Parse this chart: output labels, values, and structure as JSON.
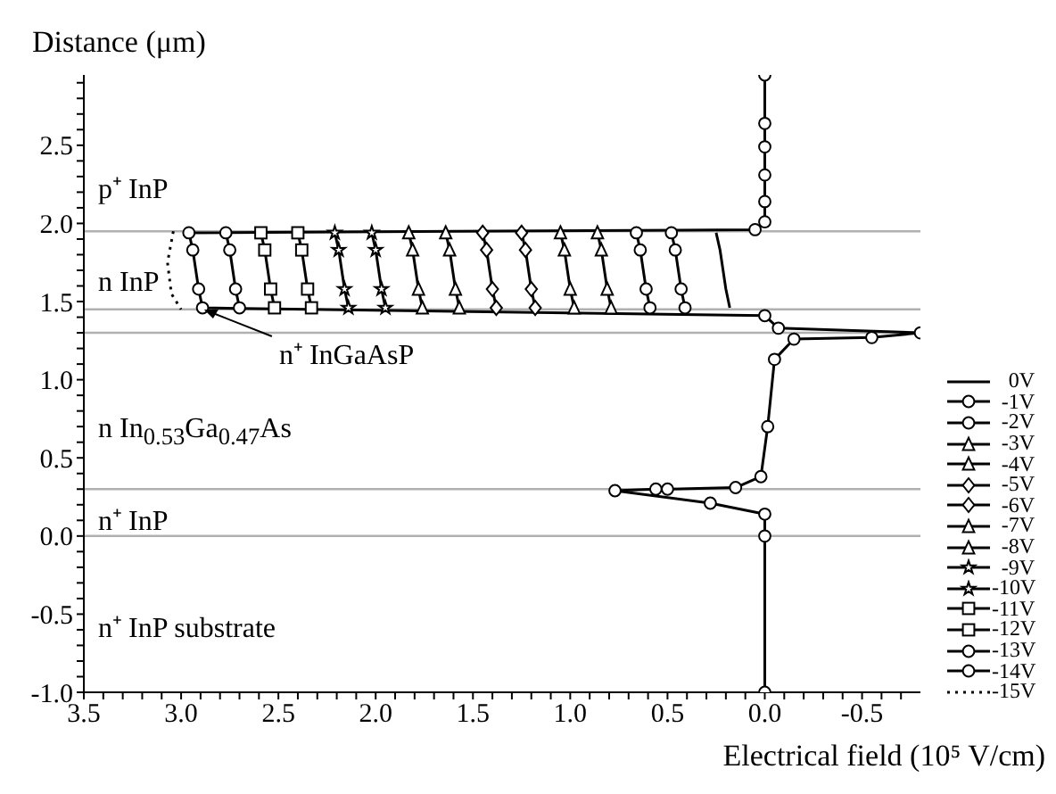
{
  "chart_data": {
    "type": "line",
    "xlabel": "Electrical field (10⁵ V/cm)",
    "ylabel": "Distance (μm)",
    "xlim": [
      3.5,
      -0.8
    ],
    "ylim": [
      -1.0,
      2.95
    ],
    "xticks": [
      3.5,
      {
        "value": 3.4,
        "label": null
      },
      {
        "value": 3.3,
        "label": null
      },
      {
        "value": 3.2,
        "label": null
      },
      {
        "value": 3.1,
        "label": null
      },
      {
        "value": 3,
        "label": "3.0"
      },
      {
        "value": 2.9,
        "label": null
      },
      {
        "value": 2.8,
        "label": null
      },
      {
        "value": 2.7,
        "label": null
      },
      {
        "value": 2.6,
        "label": null
      },
      2.5,
      {
        "value": 2.4,
        "label": null
      },
      {
        "value": 2.3,
        "label": null
      },
      {
        "value": 2.2,
        "label": null
      },
      {
        "value": 2.1,
        "label": null
      },
      {
        "value": 2,
        "label": "2.0"
      },
      {
        "value": 1.9,
        "label": null
      },
      {
        "value": 1.8,
        "label": null
      },
      {
        "value": 1.7,
        "label": null
      },
      {
        "value": 1.6,
        "label": null
      },
      1.5,
      {
        "value": 1.4,
        "label": null
      },
      {
        "value": 1.3,
        "label": null
      },
      {
        "value": 1.2,
        "label": null
      },
      {
        "value": 1.1,
        "label": null
      },
      {
        "value": 1,
        "label": "1.0"
      },
      {
        "value": 0.9,
        "label": null
      },
      {
        "value": 0.8,
        "label": null
      },
      {
        "value": 0.7,
        "label": null
      },
      {
        "value": 0.6,
        "label": null
      },
      0.5,
      {
        "value": 0.4,
        "label": null
      },
      {
        "value": 0.3,
        "label": null
      },
      {
        "value": 0.2,
        "label": null
      },
      {
        "value": 0.1,
        "label": null
      },
      {
        "value": 0,
        "label": "0.0"
      },
      {
        "value": -0.1,
        "label": null
      },
      {
        "value": -0.2,
        "label": null
      },
      {
        "value": -0.3,
        "label": null
      },
      {
        "value": -0.4,
        "label": null
      },
      -0.5,
      {
        "value": -0.6,
        "label": null
      },
      {
        "value": -0.7,
        "label": null
      }
    ],
    "yticks": [
      {
        "value": -1,
        "label": "-1.0"
      },
      {
        "value": -0.9,
        "label": null
      },
      {
        "value": -0.8,
        "label": null
      },
      {
        "value": -0.7,
        "label": null
      },
      {
        "value": -0.6,
        "label": null
      },
      -0.5,
      {
        "value": -0.4,
        "label": null
      },
      {
        "value": -0.3,
        "label": null
      },
      {
        "value": -0.2,
        "label": null
      },
      {
        "value": -0.1,
        "label": null
      },
      {
        "value": 0,
        "label": "0.0"
      },
      {
        "value": 0.1,
        "label": null
      },
      {
        "value": 0.2,
        "label": null
      },
      {
        "value": 0.3,
        "label": null
      },
      {
        "value": 0.4,
        "label": null
      },
      0.5,
      {
        "value": 0.6,
        "label": null
      },
      {
        "value": 0.7,
        "label": null
      },
      {
        "value": 0.8,
        "label": null
      },
      {
        "value": 0.9,
        "label": null
      },
      {
        "value": 1,
        "label": "1.0"
      },
      {
        "value": 1.1,
        "label": null
      },
      {
        "value": 1.2,
        "label": null
      },
      {
        "value": 1.3,
        "label": null
      },
      {
        "value": 1.4,
        "label": null
      },
      1.5,
      {
        "value": 1.6,
        "label": null
      },
      {
        "value": 1.7,
        "label": null
      },
      {
        "value": 1.8,
        "label": null
      },
      {
        "value": 1.9,
        "label": null
      },
      {
        "value": 2,
        "label": "2.0"
      },
      {
        "value": 2.1,
        "label": null
      },
      {
        "value": 2.2,
        "label": null
      },
      {
        "value": 2.3,
        "label": null
      },
      {
        "value": 2.4,
        "label": null
      },
      2.5,
      {
        "value": 2.6,
        "label": null
      },
      {
        "value": 2.7,
        "label": null
      },
      {
        "value": 2.8,
        "label": null
      },
      {
        "value": 2.9,
        "label": null
      }
    ],
    "grid": false,
    "legend": "right",
    "ref_lines": [
      {
        "axis": "y",
        "value": 1.95,
        "color": "#b0b0b0"
      },
      {
        "axis": "y",
        "value": 1.45,
        "color": "#b0b0b0"
      },
      {
        "axis": "y",
        "value": 1.3,
        "color": "#b0b0b0"
      },
      {
        "axis": "y",
        "value": 0.3,
        "color": "#b0b0b0"
      },
      {
        "axis": "y",
        "value": 0,
        "color": "#b0b0b0"
      }
    ],
    "annotations": [
      "p⁺ InP",
      "n InP",
      {
        "text": "n⁺ InGaAsP",
        "x": 2.9,
        "y": 1.46
      },
      "n In$_{0.53}$Ga$_{0.47}$As",
      "n⁺ InP",
      "n⁺ InP substrate"
    ],
    "series": [
      {
        "name": "0V",
        "color": "#000000",
        "marker": "none",
        "line_style": "solid",
        "x": [
          0.25,
          0.23,
          0.2,
          0.18
        ],
        "values": [
          1.94,
          1.83,
          1.58,
          1.46
        ]
      },
      {
        "name": "-1V",
        "color": "#000000",
        "marker": "circle",
        "line_style": "solid",
        "x": [
          0.48,
          0.46,
          0.43,
          0.41
        ],
        "values": [
          1.94,
          1.83,
          1.58,
          1.46
        ]
      },
      {
        "name": "-2V",
        "color": "#000000",
        "marker": "circle",
        "line_style": "solid",
        "x": [
          0.66,
          0.64,
          0.61,
          0.59
        ],
        "values": [
          1.94,
          1.83,
          1.58,
          1.46
        ]
      },
      {
        "name": "-3V",
        "color": "#000000",
        "marker": "triangle",
        "line_style": "solid",
        "x": [
          0.86,
          0.84,
          0.81,
          0.79
        ],
        "values": [
          1.94,
          1.83,
          1.58,
          1.46
        ]
      },
      {
        "name": "-4V",
        "color": "#000000",
        "marker": "triangle",
        "line_style": "solid",
        "x": [
          1.05,
          1.03,
          1.0,
          0.98
        ],
        "values": [
          1.94,
          1.83,
          1.58,
          1.46
        ]
      },
      {
        "name": "-5V",
        "color": "#000000",
        "marker": "diamond",
        "line_style": "solid",
        "x": [
          1.25,
          1.23,
          1.2,
          1.18
        ],
        "values": [
          1.94,
          1.83,
          1.58,
          1.46
        ]
      },
      {
        "name": "-6V",
        "color": "#000000",
        "marker": "diamond",
        "line_style": "solid",
        "x": [
          1.45,
          1.43,
          1.4,
          1.38
        ],
        "values": [
          1.94,
          1.83,
          1.58,
          1.46
        ]
      },
      {
        "name": "-7V",
        "color": "#000000",
        "marker": "triangle",
        "line_style": "solid",
        "x": [
          1.64,
          1.62,
          1.59,
          1.57
        ],
        "values": [
          1.94,
          1.83,
          1.58,
          1.46
        ]
      },
      {
        "name": "-8V",
        "color": "#000000",
        "marker": "triangle",
        "line_style": "solid",
        "x": [
          1.83,
          1.81,
          1.78,
          1.76
        ],
        "values": [
          1.94,
          1.83,
          1.58,
          1.46
        ]
      },
      {
        "name": "-9V",
        "color": "#000000",
        "marker": "star",
        "line_style": "solid",
        "x": [
          2.02,
          2.0,
          1.97,
          1.95
        ],
        "values": [
          1.94,
          1.83,
          1.58,
          1.46
        ]
      },
      {
        "name": "-10V",
        "color": "#000000",
        "marker": "star",
        "line_style": "solid",
        "x": [
          2.21,
          2.19,
          2.16,
          2.14
        ],
        "values": [
          1.94,
          1.83,
          1.58,
          1.46
        ]
      },
      {
        "name": "-11V",
        "color": "#000000",
        "marker": "square",
        "line_style": "solid",
        "x": [
          2.4,
          2.38,
          2.35,
          2.33
        ],
        "values": [
          1.94,
          1.83,
          1.58,
          1.46
        ]
      },
      {
        "name": "-12V",
        "color": "#000000",
        "marker": "square",
        "line_style": "solid",
        "x": [
          2.59,
          2.57,
          2.54,
          2.52
        ],
        "values": [
          1.94,
          1.83,
          1.58,
          1.46
        ]
      },
      {
        "name": "-13V",
        "color": "#000000",
        "marker": "circle",
        "line_style": "solid",
        "x": [
          2.77,
          2.75,
          2.72,
          2.7
        ],
        "values": [
          1.94,
          1.83,
          1.58,
          1.46
        ]
      },
      {
        "name": "-14V",
        "color": "#000000",
        "marker": "circle",
        "line_style": "solid",
        "x": [
          0,
          0,
          0,
          0,
          0,
          0,
          0.05,
          2.96,
          2.94,
          2.91,
          2.89,
          0,
          -0.07,
          -0.8,
          -0.55,
          -0.15,
          -0.05,
          -0.015,
          0.02,
          0.15,
          0.5,
          0.56,
          0.77,
          0.28,
          0,
          0,
          0
        ],
        "values": [
          2.95,
          2.64,
          2.49,
          2.31,
          2.14,
          2.01,
          1.96,
          1.94,
          1.83,
          1.58,
          1.46,
          1.41,
          1.33,
          1.3,
          1.27,
          1.26,
          1.13,
          0.7,
          0.38,
          0.31,
          0.3,
          0.3,
          0.29,
          0.21,
          0.14,
          0,
          -1
        ]
      },
      {
        "name": "-15V",
        "color": "#000000",
        "marker": "none",
        "line_style": "dotted",
        "x": [
          3.04,
          3.07,
          3.05,
          3.0
        ],
        "values": [
          1.95,
          1.75,
          1.55,
          1.45
        ]
      }
    ]
  }
}
